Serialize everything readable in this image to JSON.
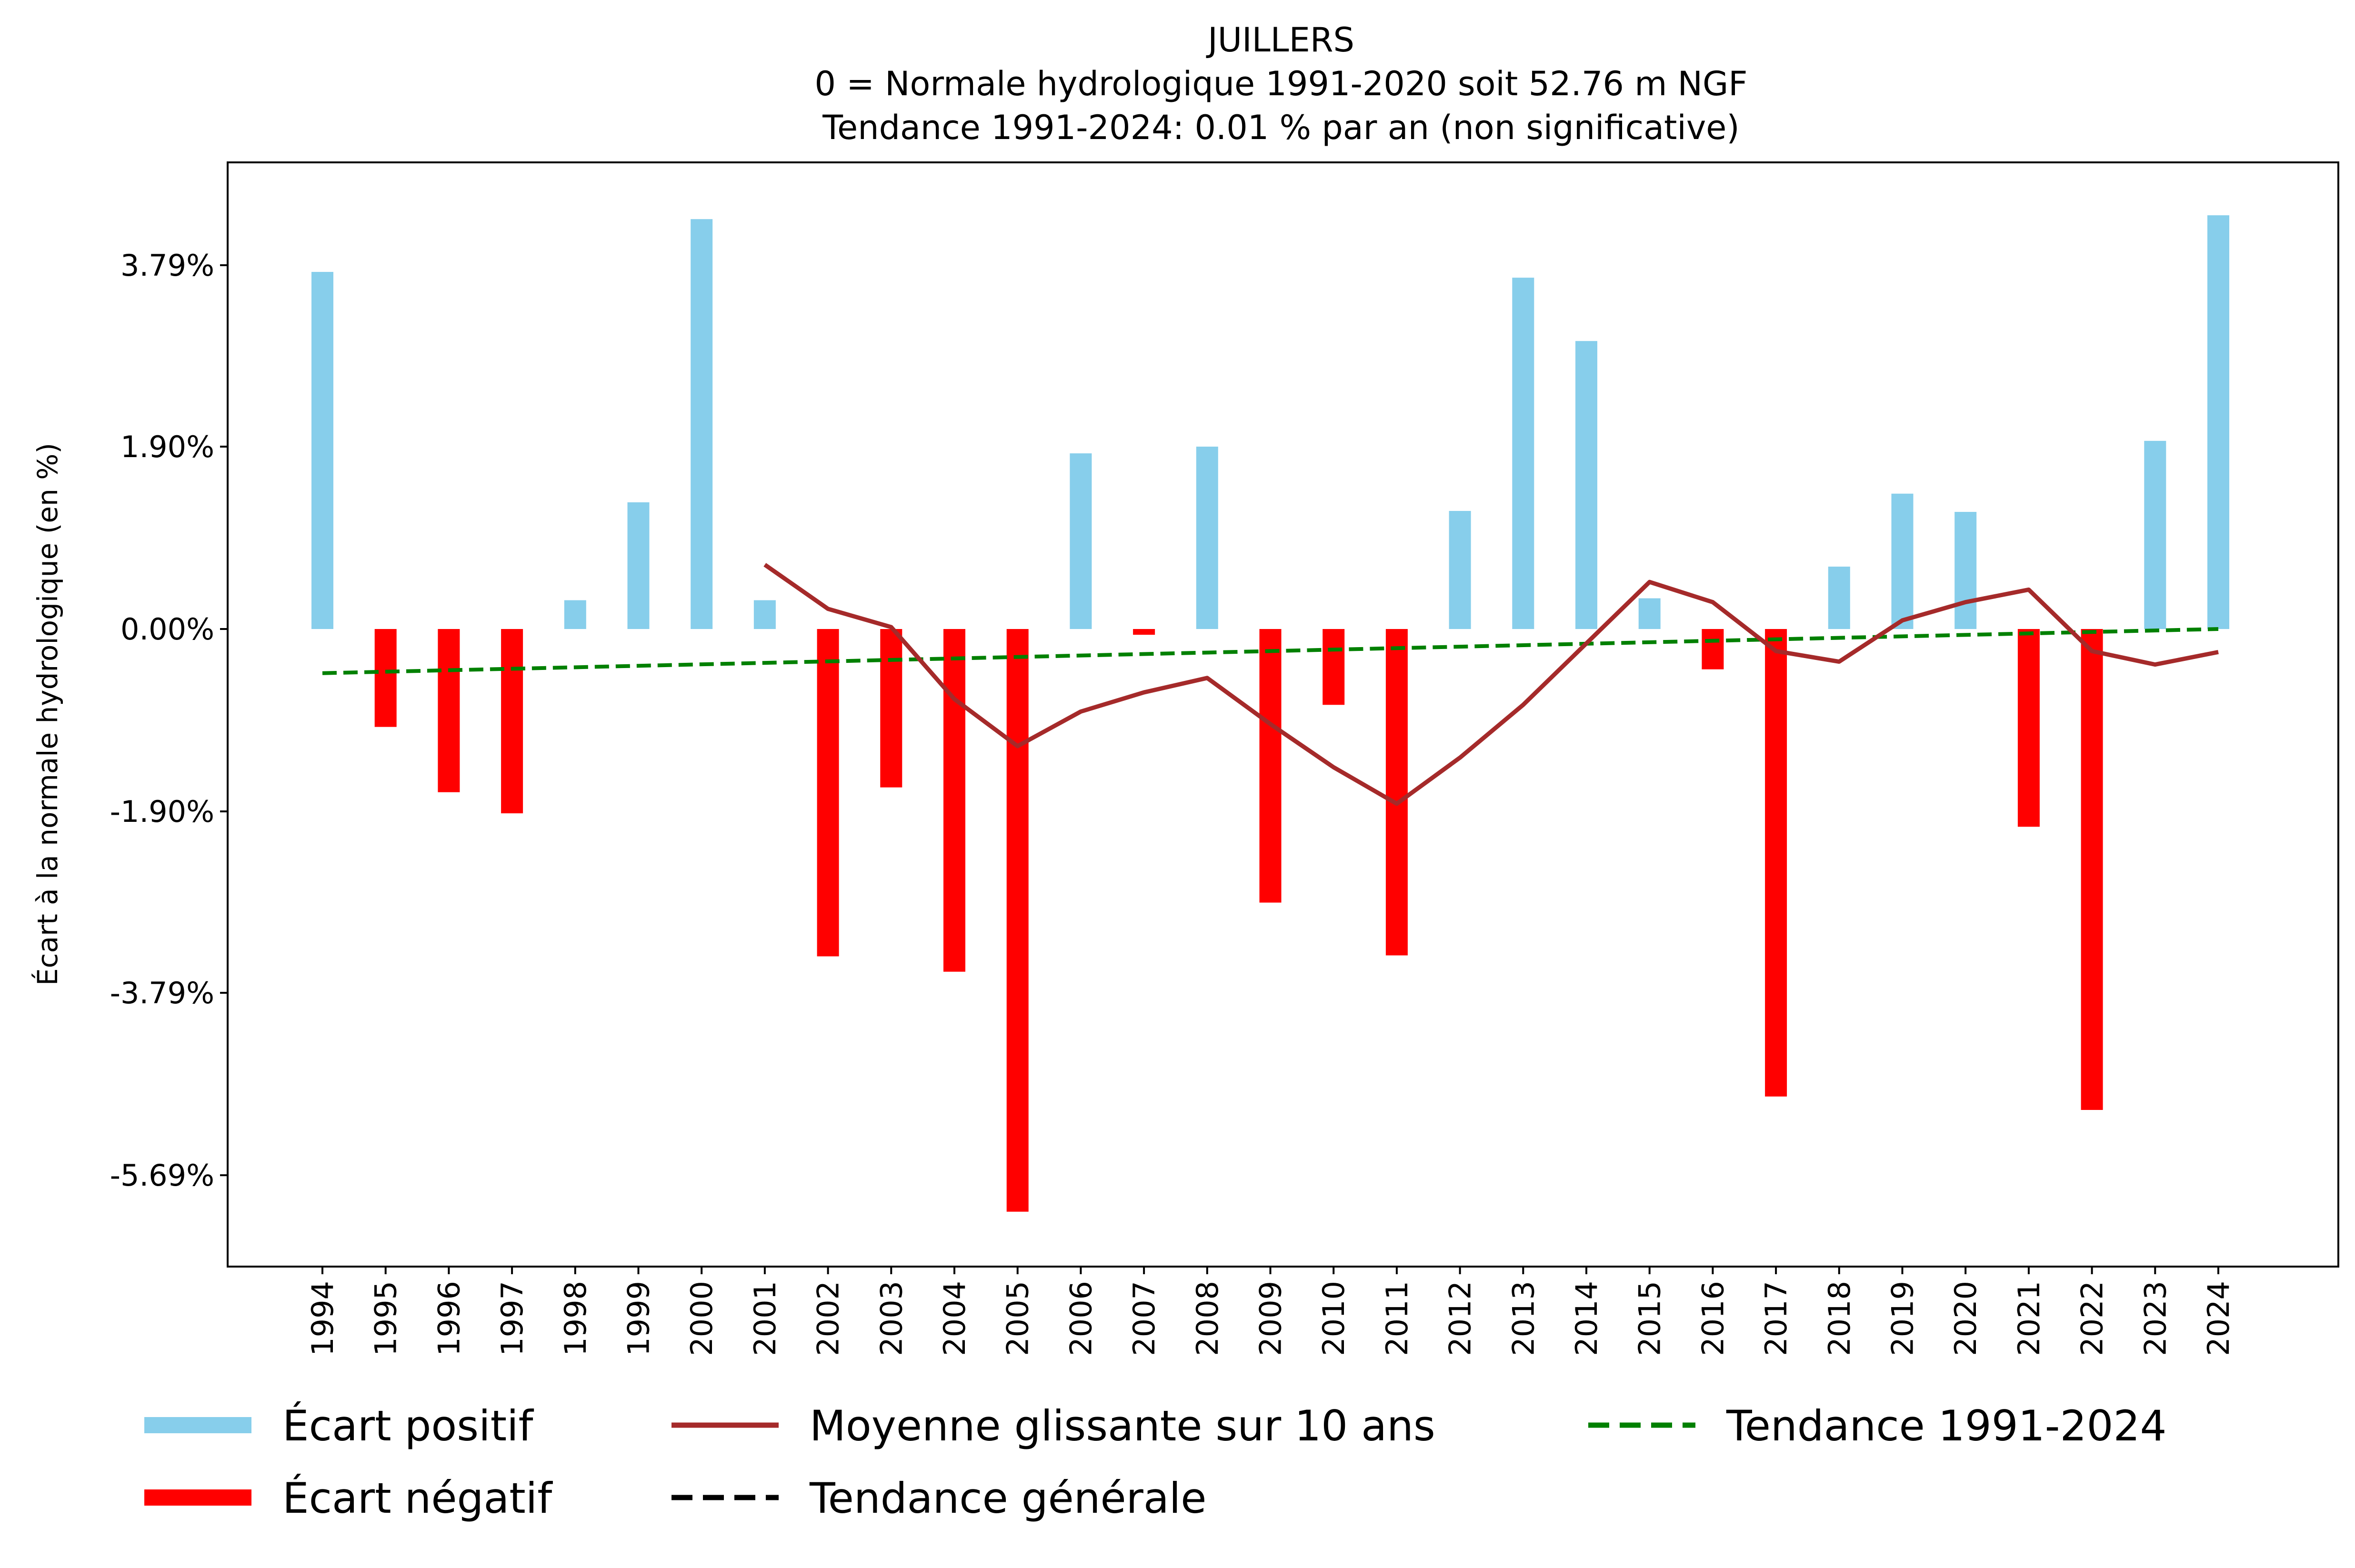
{
  "chart_data": {
    "type": "bar",
    "title": "JUILLERS",
    "subtitle_lines": [
      "0 = Normale hydrologique 1991-2020 soit 52.76 m NGF",
      "Tendance 1991-2024: 0.01 % par an (non significative)"
    ],
    "ylabel": "Écart à la normale hydrologique (en %)",
    "xlabel": "",
    "ylim": [
      -6.6,
      4.9
    ],
    "yticks": [
      3.79,
      1.9,
      0.0,
      -1.9,
      -3.79,
      -5.69
    ],
    "ytick_labels": [
      "3.79%",
      "1.90%",
      "0.00%",
      "-1.90%",
      "-3.79%",
      "-5.69%"
    ],
    "grid": false,
    "legend_position": "bottom",
    "categories": [
      "1994",
      "1995",
      "1996",
      "1997",
      "1998",
      "1999",
      "2000",
      "2001",
      "2002",
      "2003",
      "2004",
      "2005",
      "2006",
      "2007",
      "2008",
      "2009",
      "2010",
      "2011",
      "2012",
      "2013",
      "2014",
      "2015",
      "2016",
      "2017",
      "2018",
      "2019",
      "2020",
      "2021",
      "2022",
      "2023",
      "2024"
    ],
    "values": [
      3.72,
      -1.02,
      -1.7,
      -1.92,
      0.3,
      1.32,
      4.27,
      0.3,
      -3.41,
      -1.65,
      -3.57,
      -6.07,
      1.83,
      -0.06,
      1.9,
      -2.85,
      -0.79,
      -3.4,
      1.23,
      3.66,
      3.0,
      0.32,
      -0.42,
      -4.87,
      0.65,
      1.41,
      1.22,
      -2.06,
      -5.01,
      1.96,
      4.31
    ],
    "rolling_mean": {
      "name": "Moyenne glissante sur 10 ans",
      "start_index": 7,
      "values": [
        0.67,
        0.21,
        0.02,
        -0.73,
        -1.22,
        -0.86,
        -0.66,
        -0.51,
        -0.99,
        -1.44,
        -1.82,
        -1.34,
        -0.79,
        -0.15,
        0.49,
        0.28,
        -0.23,
        -0.34,
        0.09,
        0.28,
        0.41,
        -0.23,
        -0.37,
        -0.24
      ]
    },
    "trend": {
      "name": "Tendance 1991-2024",
      "start": -0.46,
      "end": 0.0
    },
    "legend": [
      {
        "label": "Écart positif",
        "color": "#87CEEB",
        "style": "thick"
      },
      {
        "label": "Écart négatif",
        "color": "#FF0000",
        "style": "thick"
      },
      {
        "label": "Moyenne glissante sur 10 ans",
        "color": "#A52A2A",
        "style": "solid"
      },
      {
        "label": "Tendance générale",
        "color": "#000000",
        "style": "dashed"
      },
      {
        "label": "Tendance 1991-2024",
        "color": "#008000",
        "style": "dashed"
      }
    ],
    "colors": {
      "positive": "#87CEEB",
      "negative": "#FF0000",
      "rolling": "#A52A2A",
      "trend": "#008000",
      "general_trend": "#000000"
    }
  }
}
